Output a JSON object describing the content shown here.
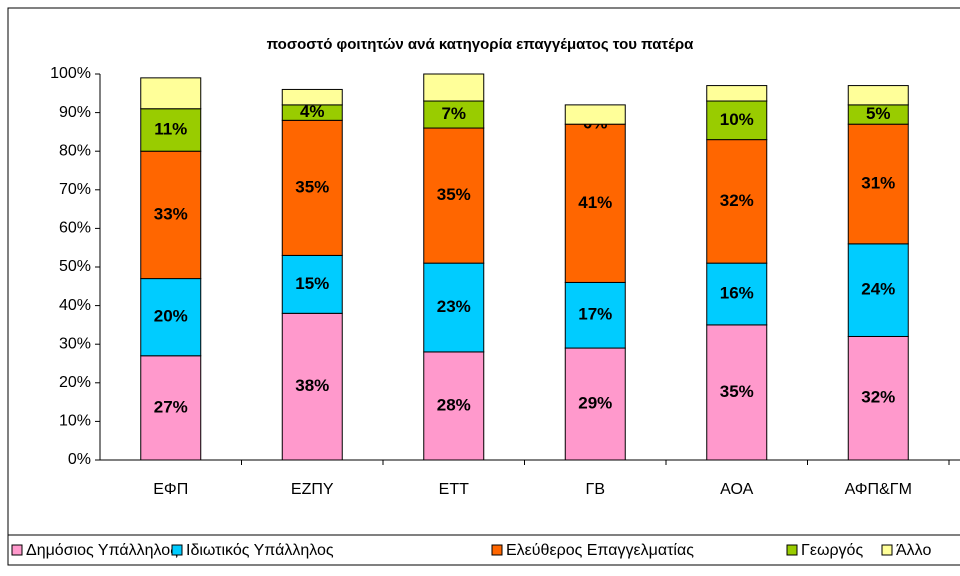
{
  "chart_data": {
    "type": "stacked_bar",
    "title": "ποσοστό φοιτητών ανά κατηγορία επαγγέματος του πατέρα",
    "categories": [
      "ΕΦΠ",
      "ΕΖΠΥ",
      "ΕΤΤ",
      "ΓΒ",
      "ΑΟΑ",
      "ΑΦΠ&ΓΜ"
    ],
    "series": [
      {
        "name": "Δημόσιος Υπάλληλος",
        "color": "#ff99cc",
        "values": [
          27,
          38,
          28,
          29,
          35,
          32
        ],
        "value_labels": [
          "27%",
          "38%",
          "28%",
          "29%",
          "35%",
          "32%"
        ]
      },
      {
        "name": "Ιδιωτικός Υπάλληλος",
        "color": "#00ccff",
        "values": [
          20,
          15,
          23,
          17,
          16,
          24
        ],
        "value_labels": [
          "20%",
          "15%",
          "23%",
          "17%",
          "16%",
          "24%"
        ]
      },
      {
        "name": "Ελεύθερος Επαγγελματίας",
        "color": "#ff6600",
        "values": [
          33,
          35,
          35,
          41,
          32,
          31
        ],
        "value_labels": [
          "33%",
          "35%",
          "35%",
          "41%",
          "32%",
          "31%"
        ]
      },
      {
        "name": "Γεωργός",
        "color": "#99cc00",
        "values": [
          11,
          4,
          7,
          0,
          10,
          5
        ],
        "value_labels": [
          "11%",
          "4%",
          "7%",
          "0%",
          "10%",
          "5%"
        ]
      },
      {
        "name": "Άλλο",
        "color": "#ffff99",
        "values": [
          8,
          4,
          7,
          5,
          4,
          5
        ]
      }
    ],
    "ylim": [
      0,
      100
    ],
    "yticks": [
      {
        "value": 0,
        "label": "0%"
      },
      {
        "value": 10,
        "label": "10%"
      },
      {
        "value": 20,
        "label": "20%"
      },
      {
        "value": 30,
        "label": "30%"
      },
      {
        "value": 40,
        "label": "40%"
      },
      {
        "value": 50,
        "label": "50%"
      },
      {
        "value": 60,
        "label": "60%"
      },
      {
        "value": 70,
        "label": "70%"
      },
      {
        "value": 80,
        "label": "80%"
      },
      {
        "value": 90,
        "label": "90%"
      },
      {
        "value": 100,
        "label": "100%"
      }
    ],
    "grid": false,
    "legend": "bottom"
  }
}
